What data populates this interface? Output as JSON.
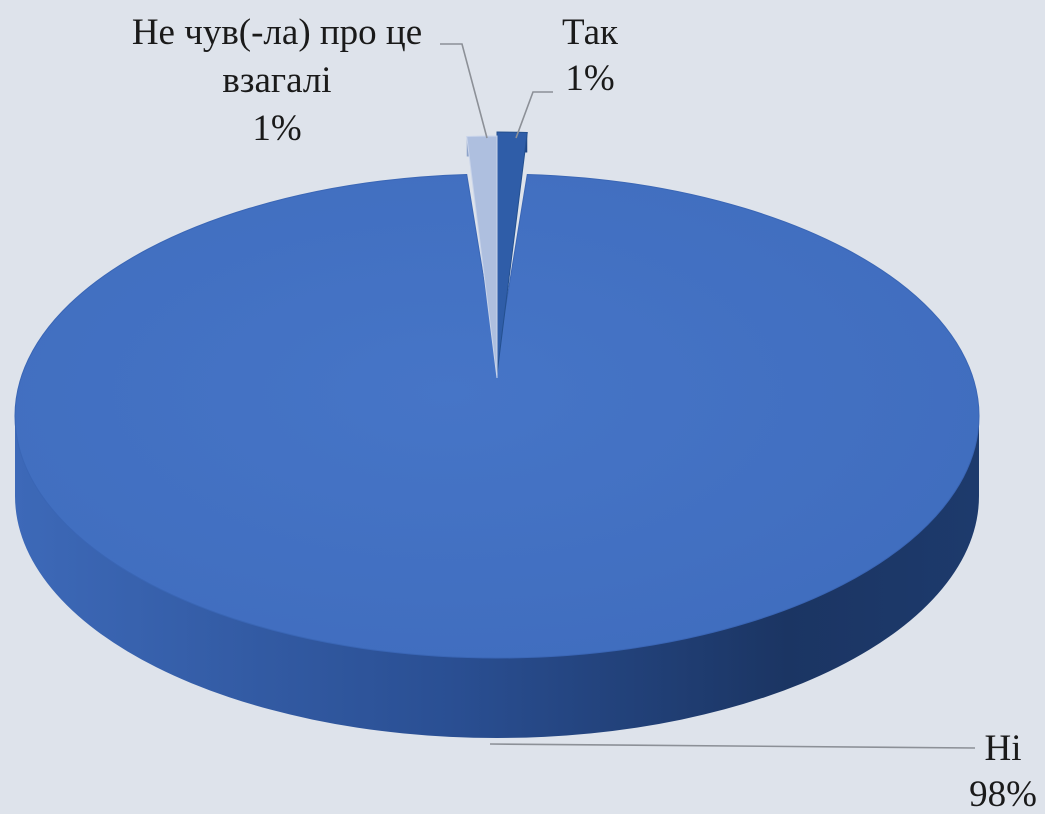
{
  "chart_data": {
    "type": "pie",
    "title": "",
    "categories": [
      "Так",
      "Не чув(-ла) про це взагалі",
      "Ні"
    ],
    "values": [
      1,
      1,
      98
    ],
    "value_labels": [
      "1%",
      "1%",
      "98%"
    ],
    "label_lines": [
      [
        "Так",
        "1%"
      ],
      [
        "Не чув(-ла) про це",
        "взагалі",
        "1%"
      ],
      [
        "Ні",
        "98%"
      ]
    ],
    "colors": [
      "#2f5da8",
      "#aebfdf",
      "#4472c4"
    ],
    "style": "3d-exploded"
  }
}
